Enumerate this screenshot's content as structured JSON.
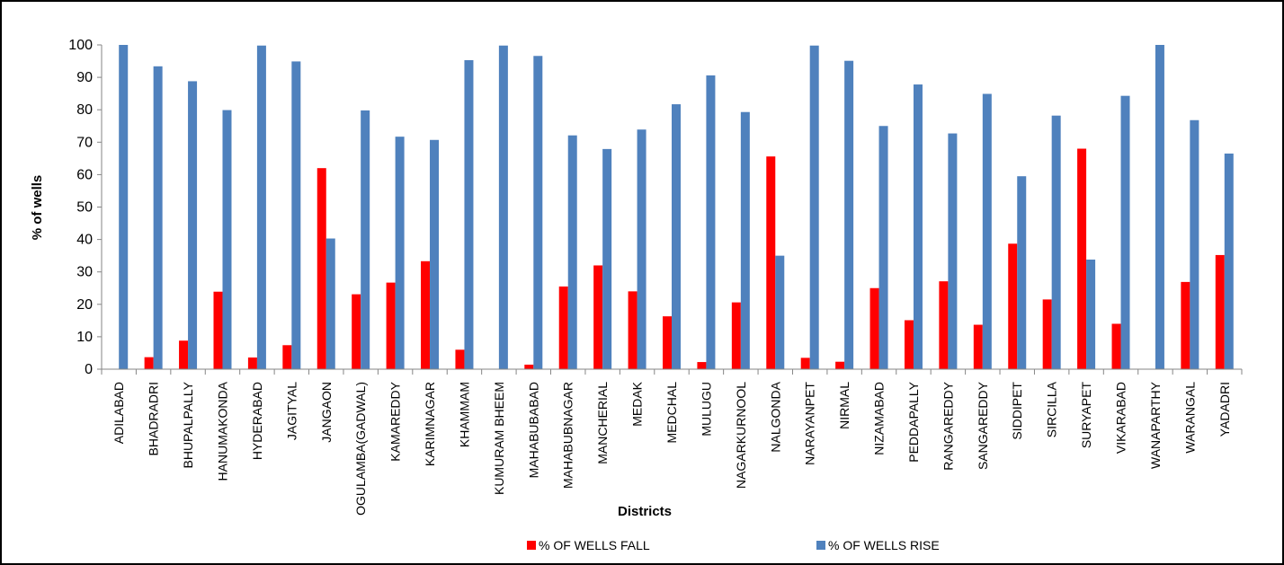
{
  "chart_data": {
    "type": "bar",
    "title": "",
    "xlabel": "Districts",
    "ylabel": "% of wells",
    "ylim": [
      0,
      100
    ],
    "yticks": [
      0,
      10,
      20,
      30,
      40,
      50,
      60,
      70,
      80,
      90,
      100
    ],
    "grid": false,
    "legend_position": "bottom",
    "categories": [
      "ADILABAD",
      "BHADRADRI",
      "BHUPALPALLY",
      "HANUMAKONDA",
      "HYDERABAD",
      "JAGITYAL",
      "JANGAON",
      "OGULAMBA(GADWAL)",
      "KAMAREDDY",
      "KARIMNAGAR",
      "KHAMMAM",
      "KUMURAM BHEEM",
      "MAHABUBABAD",
      "MAHABUBNAGAR",
      "MANCHERIAL",
      "MEDAK",
      "MEDCHAL",
      "MULUGU",
      "NAGARKURNOOL",
      "NALGONDA",
      "NARAYANPET",
      "NIRMAL",
      "NIZAMABAD",
      "PEDDAPALLY",
      "RANGAREDDY",
      "SANGAREDDY",
      "SIDDIPET",
      "SIRCILLA",
      "SURYAPET",
      "VIKARABAD",
      "WANAPARTHY",
      "WARANGAL",
      "YADADRI"
    ],
    "series": [
      {
        "name": "% OF WELLS FALL",
        "color": "#ff0000",
        "values": [
          0,
          3.7,
          8.8,
          23.9,
          3.6,
          7.4,
          62,
          23.1,
          26.7,
          33.3,
          6,
          0,
          1.4,
          25.5,
          32,
          24,
          16.3,
          2.2,
          20.6,
          65.6,
          3.5,
          2.3,
          25,
          15.1,
          27.1,
          13.7,
          38.7,
          21.5,
          68,
          14,
          0,
          26.9,
          35.2
        ]
      },
      {
        "name": "% OF WELLS RISE",
        "color": "#4f81bd",
        "values": [
          100,
          93.4,
          88.8,
          79.9,
          99.8,
          94.9,
          40.3,
          79.8,
          71.7,
          70.7,
          95.3,
          99.8,
          96.6,
          72.1,
          67.9,
          73.9,
          81.7,
          90.6,
          79.3,
          35,
          99.8,
          95.1,
          75,
          87.8,
          72.7,
          84.9,
          59.5,
          78.2,
          33.8,
          84.3,
          100,
          76.8,
          66.5
        ]
      }
    ]
  }
}
